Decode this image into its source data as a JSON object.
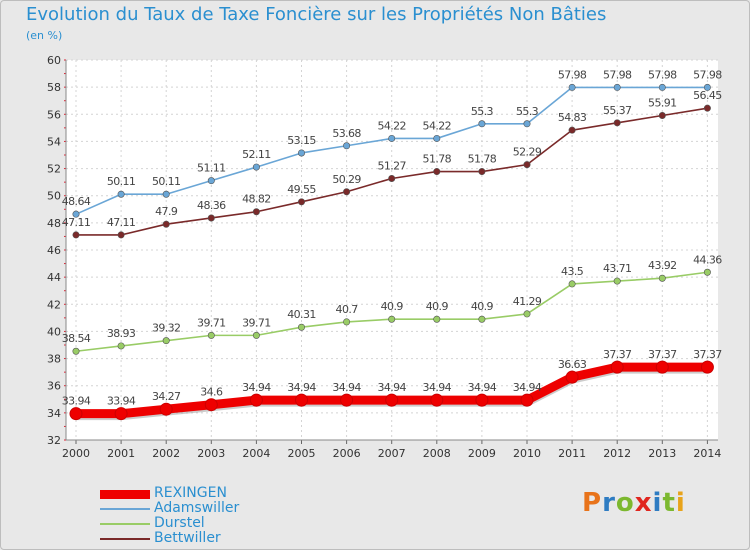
{
  "title": "Evolution du Taux de Taxe Foncière sur les Propriétés Non Bâties",
  "unit_label": "(en %)",
  "logo_text": "Proxiti",
  "logo_colors": [
    "#e8731a",
    "#2e7cc2",
    "#7cb82f",
    "#e0261f",
    "#2e7cc2",
    "#7cb82f",
    "#e8a31a"
  ],
  "chart_data": {
    "type": "line",
    "title": "Evolution du Taux de Taxe Foncière sur les Propriétés Non Bâties",
    "ylabel": "(en %)",
    "xlabel": "",
    "x": [
      "2000",
      "2001",
      "2002",
      "2003",
      "2004",
      "2005",
      "2006",
      "2007",
      "2008",
      "2009",
      "2010",
      "2011",
      "2012",
      "2013",
      "2014"
    ],
    "ylim": [
      32,
      60
    ],
    "yticks": [
      "32",
      "34",
      "36",
      "38",
      "40",
      "42",
      "44",
      "46",
      "48",
      "50",
      "52",
      "54",
      "56",
      "58",
      "60"
    ],
    "grid": true,
    "legend_position": "bottom-left",
    "series": [
      {
        "name": "REXINGEN",
        "color": "#ee0000",
        "values": [
          33.94,
          33.94,
          34.27,
          34.6,
          34.94,
          34.94,
          34.94,
          34.94,
          34.94,
          34.94,
          34.94,
          36.63,
          37.37,
          37.37,
          37.37
        ],
        "labels": [
          "33.94",
          "33.94",
          "34.27",
          "34.6",
          "34.94",
          "34.94",
          "34.94",
          "34.94",
          "34.94",
          "34.94",
          "34.94",
          "36.63",
          "37.37",
          "37.37",
          "37.37"
        ]
      },
      {
        "name": "Adamswiller",
        "color": "#6aa6d6",
        "values": [
          48.64,
          50.11,
          50.11,
          51.11,
          52.11,
          53.15,
          53.68,
          54.22,
          54.22,
          55.3,
          55.3,
          57.98,
          57.98,
          57.98,
          57.98
        ],
        "labels": [
          "48.64",
          "50.11",
          "50.11",
          "51.11",
          "52.11",
          "53.15",
          "53.68",
          "54.22",
          "54.22",
          "55.3",
          "55.3",
          "57.98",
          "57.98",
          "57.98",
          "57.98"
        ]
      },
      {
        "name": "Durstel",
        "color": "#99cc66",
        "values": [
          38.54,
          38.93,
          39.32,
          39.71,
          39.71,
          40.31,
          40.7,
          40.9,
          40.9,
          40.9,
          41.29,
          43.5,
          43.71,
          43.92,
          44.36
        ],
        "labels": [
          "38.54",
          "38.93",
          "39.32",
          "39.71",
          "39.71",
          "40.31",
          "40.7",
          "40.9",
          "40.9",
          "40.9",
          "41.29",
          "43.5",
          "43.71",
          "43.92",
          "44.36"
        ]
      },
      {
        "name": "Bettwiller",
        "color": "#7a2a2a",
        "values": [
          47.11,
          47.11,
          47.9,
          48.36,
          48.82,
          49.55,
          50.29,
          51.27,
          51.78,
          51.78,
          52.29,
          54.83,
          55.37,
          55.91,
          56.45
        ],
        "labels": [
          "47.11",
          "47.11",
          "47.9",
          "48.36",
          "48.82",
          "49.55",
          "50.29",
          "51.27",
          "51.78",
          "51.78",
          "52.29",
          "54.83",
          "55.37",
          "55.91",
          "56.45"
        ]
      }
    ]
  }
}
